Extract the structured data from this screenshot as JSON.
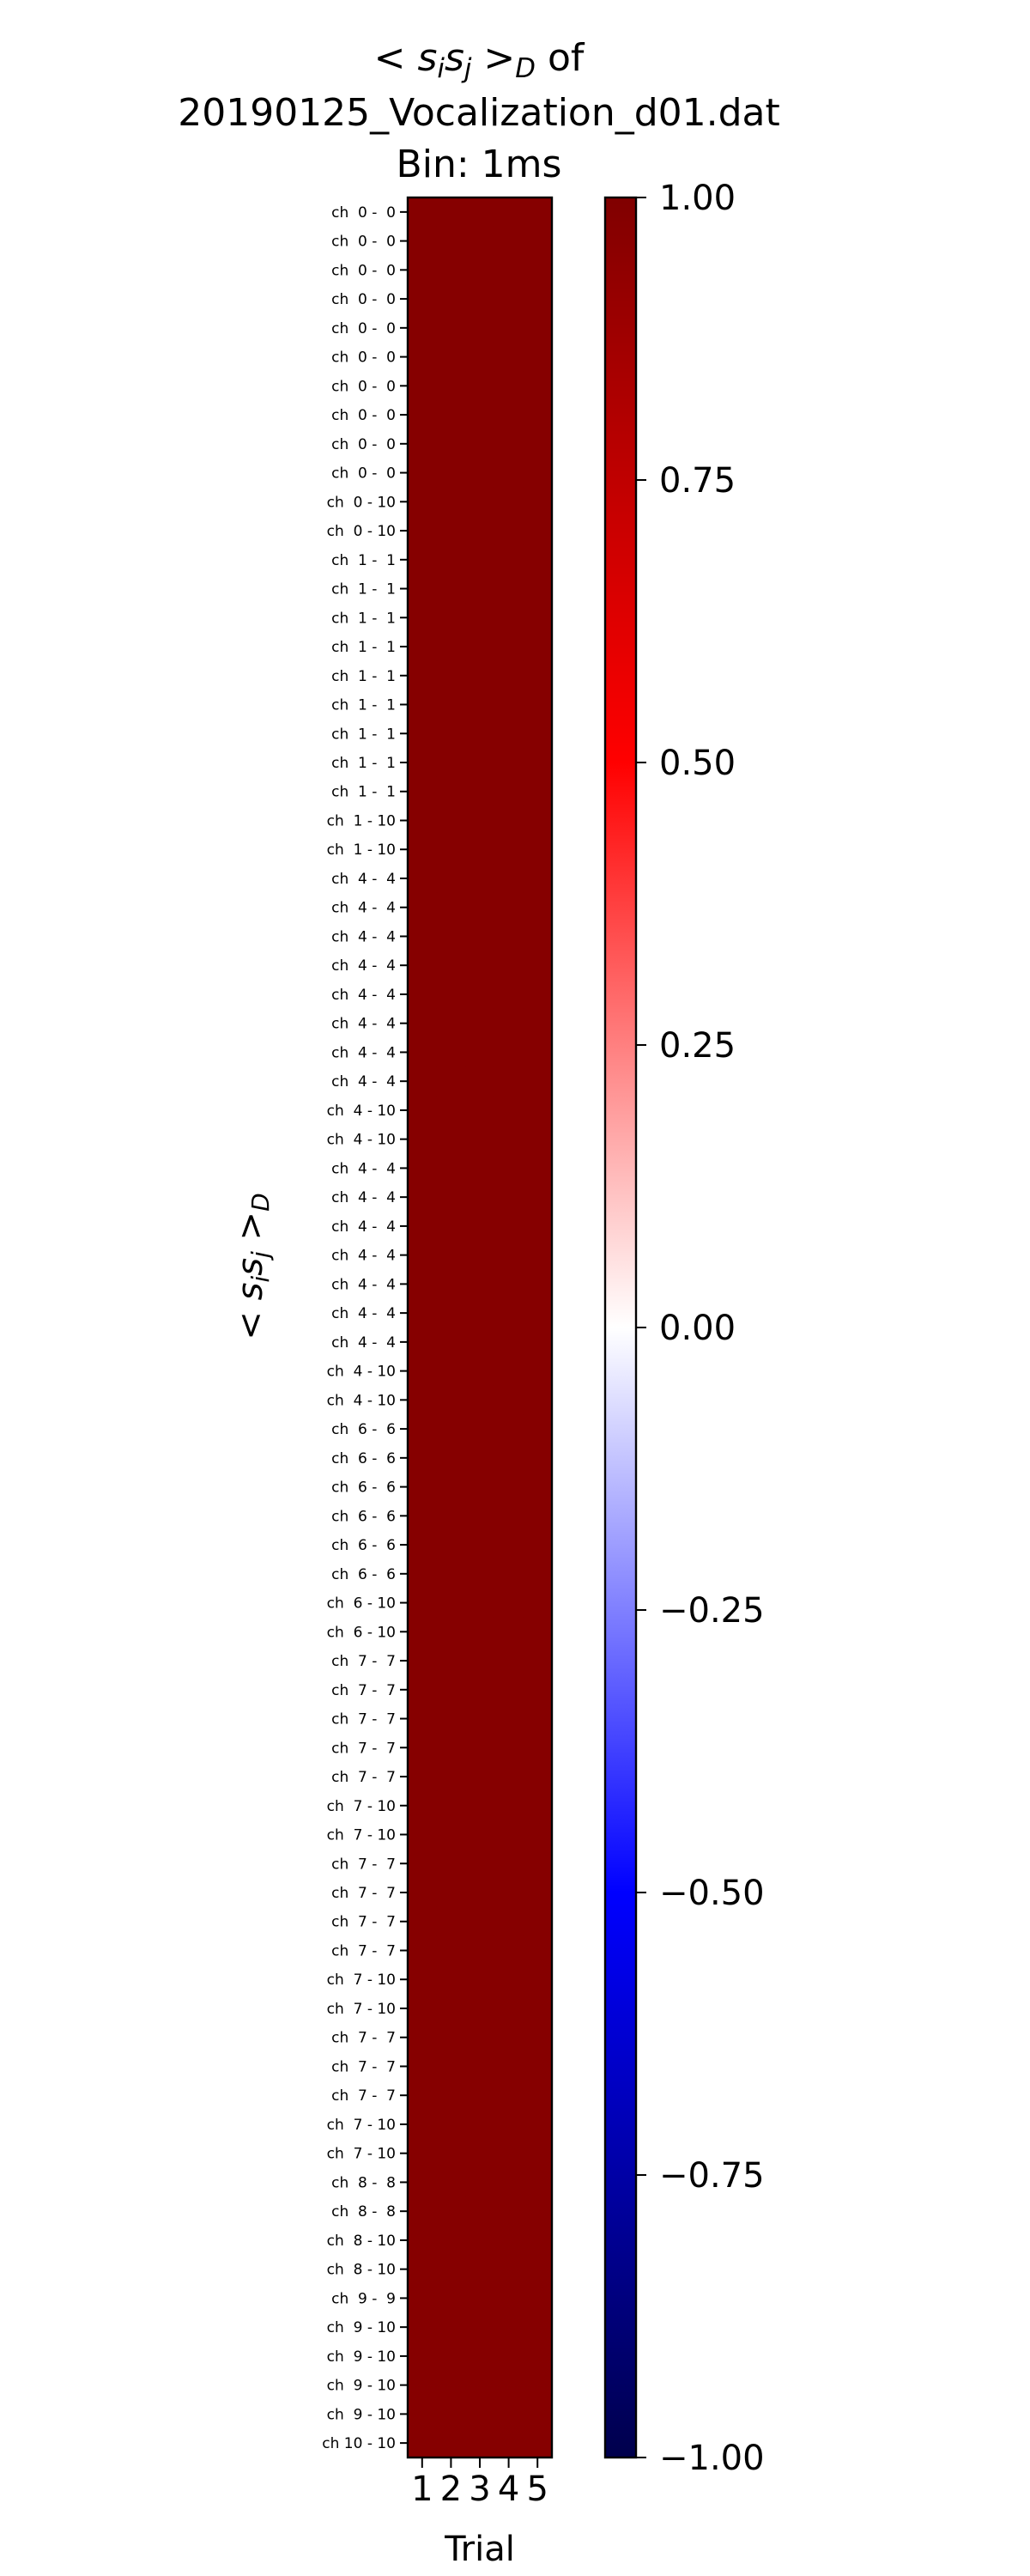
{
  "chart_data": {
    "type": "heatmap",
    "title_lines": [
      "< s_i s_j >_D of",
      "20190125_Vocalization_d01.dat",
      "Bin: 1ms"
    ],
    "ylabel": "< s_i s_j >_D",
    "xlabel": "Trial",
    "x_categories": [
      "1",
      "2",
      "3",
      "4",
      "5"
    ],
    "y_categories": [
      "ch  0 -  0",
      "ch  0 -  0",
      "ch  0 -  0",
      "ch  0 -  0",
      "ch  0 -  0",
      "ch  0 -  0",
      "ch  0 -  0",
      "ch  0 -  0",
      "ch  0 -  0",
      "ch  0 -  0",
      "ch  0 - 10",
      "ch  0 - 10",
      "ch  1 -  1",
      "ch  1 -  1",
      "ch  1 -  1",
      "ch  1 -  1",
      "ch  1 -  1",
      "ch  1 -  1",
      "ch  1 -  1",
      "ch  1 -  1",
      "ch  1 -  1",
      "ch  1 - 10",
      "ch  1 - 10",
      "ch  4 -  4",
      "ch  4 -  4",
      "ch  4 -  4",
      "ch  4 -  4",
      "ch  4 -  4",
      "ch  4 -  4",
      "ch  4 -  4",
      "ch  4 -  4",
      "ch  4 - 10",
      "ch  4 - 10",
      "ch  4 -  4",
      "ch  4 -  4",
      "ch  4 -  4",
      "ch  4 -  4",
      "ch  4 -  4",
      "ch  4 -  4",
      "ch  4 -  4",
      "ch  4 - 10",
      "ch  4 - 10",
      "ch  6 -  6",
      "ch  6 -  6",
      "ch  6 -  6",
      "ch  6 -  6",
      "ch  6 -  6",
      "ch  6 -  6",
      "ch  6 - 10",
      "ch  6 - 10",
      "ch  7 -  7",
      "ch  7 -  7",
      "ch  7 -  7",
      "ch  7 -  7",
      "ch  7 -  7",
      "ch  7 - 10",
      "ch  7 - 10",
      "ch  7 -  7",
      "ch  7 -  7",
      "ch  7 -  7",
      "ch  7 -  7",
      "ch  7 - 10",
      "ch  7 - 10",
      "ch  7 -  7",
      "ch  7 -  7",
      "ch  7 -  7",
      "ch  7 - 10",
      "ch  7 - 10",
      "ch  8 -  8",
      "ch  8 -  8",
      "ch  8 - 10",
      "ch  8 - 10",
      "ch  9 -  9",
      "ch  9 - 10",
      "ch  9 - 10",
      "ch  9 - 10",
      "ch  9 - 10",
      "ch 10 - 10"
    ],
    "cell_value": 1.0,
    "cell_color": "#860000",
    "colorbar": {
      "vmin": -1.0,
      "vmax": 1.0,
      "ticks": [
        1.0,
        0.75,
        0.5,
        0.25,
        0.0,
        -0.25,
        -0.5,
        -0.75,
        -1.0
      ],
      "tick_labels": [
        "1.00",
        "0.75",
        "0.50",
        "0.25",
        "0.00",
        "−0.25",
        "−0.50",
        "−0.75",
        "−1.00"
      ],
      "colormap": "seismic",
      "stops": [
        "#00004c",
        "#0000ff",
        "#ffffff",
        "#ff0000",
        "#800000"
      ]
    }
  }
}
